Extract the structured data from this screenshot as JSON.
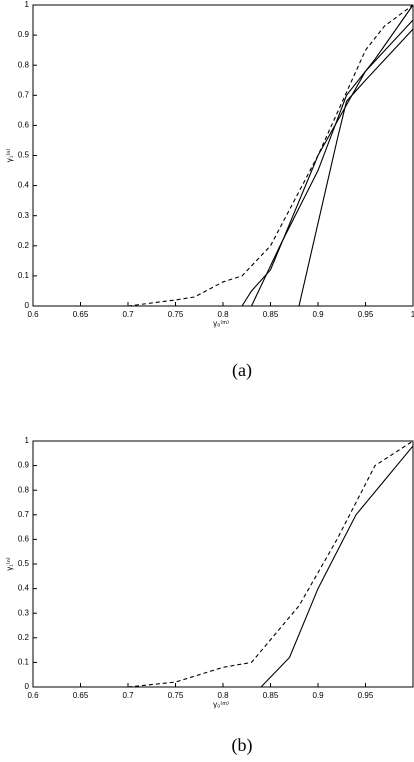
{
  "chart_data": [
    {
      "type": "line",
      "caption": "(a)",
      "xlabel": "γ₀⁽ᵐ⁾",
      "ylabel": "γ₁⁽ⁿ⁾",
      "xlim": [
        0.6,
        1
      ],
      "xticks": [
        0.6,
        0.65,
        0.7,
        0.75,
        0.8,
        0.85,
        0.9,
        0.95,
        1
      ],
      "ylim": [
        0,
        1
      ],
      "yticks": [
        0,
        0.1,
        0.2,
        0.3,
        0.4,
        0.5,
        0.6,
        0.7,
        0.8,
        0.9,
        1
      ],
      "grid": false,
      "series": [
        {
          "color": "#000000",
          "dashed": true,
          "x": [
            0.7,
            0.75,
            0.77,
            0.8,
            0.82,
            0.85,
            0.9,
            0.95,
            0.97,
            1
          ],
          "values": [
            0,
            0.02,
            0.03,
            0.08,
            0.1,
            0.2,
            0.5,
            0.85,
            0.93,
            1
          ]
        },
        {
          "color": "#000000",
          "dashed": false,
          "x": [
            0.82,
            0.83,
            0.85,
            0.9,
            0.95,
            1
          ],
          "values": [
            0,
            0.05,
            0.12,
            0.5,
            0.78,
            0.95
          ]
        },
        {
          "color": "#000000",
          "dashed": false,
          "x": [
            0.83,
            0.86,
            0.9,
            0.93,
            0.96,
            1
          ],
          "values": [
            0,
            0.2,
            0.45,
            0.7,
            0.82,
            1
          ]
        },
        {
          "color": "#000000",
          "dashed": false,
          "x": [
            0.88,
            0.92,
            0.93,
            0.95,
            1
          ],
          "values": [
            0,
            0.55,
            0.68,
            0.75,
            0.92
          ]
        }
      ]
    },
    {
      "type": "line",
      "caption": "(b)",
      "xlabel": "γ₀⁽ᵐ⁾",
      "ylabel": "γ₁⁽ⁿ⁾",
      "xlim": [
        0.6,
        1
      ],
      "xticks": [
        0.6,
        0.65,
        0.7,
        0.75,
        0.8,
        0.85,
        0.9,
        0.95
      ],
      "ylim": [
        0,
        1
      ],
      "yticks": [
        0,
        0.1,
        0.2,
        0.3,
        0.4,
        0.5,
        0.6,
        0.7,
        0.8,
        0.9,
        1
      ],
      "grid": false,
      "series": [
        {
          "color": "#000000",
          "dashed": true,
          "x": [
            0.7,
            0.75,
            0.8,
            0.83,
            0.88,
            0.92,
            0.96,
            1
          ],
          "values": [
            0,
            0.02,
            0.08,
            0.1,
            0.33,
            0.6,
            0.9,
            1
          ]
        },
        {
          "color": "#000000",
          "dashed": false,
          "x": [
            0.84,
            0.87,
            0.9,
            0.94,
            1
          ],
          "values": [
            0,
            0.12,
            0.4,
            0.7,
            0.98
          ]
        }
      ]
    }
  ]
}
